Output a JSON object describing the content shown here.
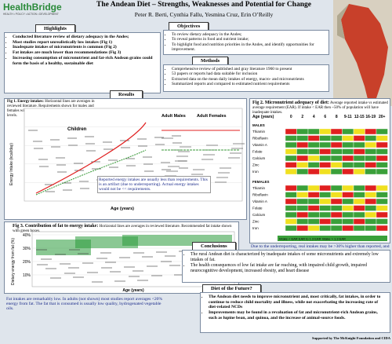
{
  "header": {
    "logo": "HealthBridge",
    "tagline": "HEALTH • POLICY • ACTION • DEVELOPMENT",
    "title": "The Andean Diet – Strengths, Weaknesses and Potential for Change",
    "authors": "Peter R. Berti, Cynthia Fallu, Yesmina Cruz, Erin O’Reilly"
  },
  "highlights": {
    "title": "Highlights",
    "items": [
      "Conducted literature review of dietary adequacy in the Andes;",
      "Most studies report unrealistically low intakes (Fig 1)",
      "Inadequate intakes of micronutrients is common (Fig 2)",
      "Fat intakes are much lower than recommendations (Fig 3)",
      "Increasing consumption of micronutrient and fat-rich Andean grains could form the basis of a healthy, sustainable diet"
    ]
  },
  "objectives": {
    "title": "Objectives",
    "items": [
      "To review dietary adequacy in the Andes;",
      "To reveal patterns in food and nutrient intake;",
      "To highlight food and nutrition priorities in the Andes, and identify opportunities for improvement."
    ]
  },
  "methods": {
    "title": "Methods",
    "items": [
      "Comprehensive review of published and gray literature 1960 to present",
      "53 papers or reports had data suitable for inclusion",
      "Extracted data on the mean daily intakes of energy, macro- and micronutrients",
      "Summarized reports and compared to estimated nutrient requirements"
    ]
  },
  "results": {
    "title": "Results"
  },
  "fig1": {
    "title": "Fig 1. Energy intakes:",
    "caption": "Horizontal lines are averages in reviewed literature. Requirements shown for males and females with high (solid lines), and light (dotted) activity levels.",
    "labels": [
      "Adult Males",
      "Adult Females",
      "Children"
    ],
    "y_label": "Energy Intake (kcal/day)",
    "x_label": "Age (years)",
    "note": "Reported energy intakes are usually less than requirements. This is an artifact (due to underreporting). Actual energy intakes would not be << requirements."
  },
  "fig2": {
    "title": "Fig 2. Micronutrient adequacy of diet:",
    "caption": "Average reported intake vs estimated average requirement (EAR). If intake < EAR then ~50% of population will have inadequate intakes.",
    "age_label": "Age (years)",
    "ages": [
      "0",
      "2",
      "4",
      "6",
      "8",
      "9-11",
      "12-15",
      "16-19",
      "20+"
    ],
    "groups": [
      "MALES",
      "FEMALES"
    ],
    "nutrients": [
      "Thiamin",
      "Riboflavin",
      "Vitamin A",
      "Folate",
      "Calcium",
      "Zinc",
      "Iron"
    ],
    "legend": "Intake < EAR    EAR to 1.3 EAR    Intake > 1.3 EAR",
    "note": "Due to the underreporting, real intakes may be >30% higher than reported, and nutrient inadequacies much less common"
  },
  "fig3": {
    "title": "Fig 3. Contribution of fat to energy intake:",
    "caption": "Horizontal lines are averages in reviewed literature. Recommended fat intake shown with green boxes.",
    "y_label": "Dietary energy from fat (%)",
    "x_label": "Age (years)",
    "yticks": [
      "40%",
      "30%",
      "20%",
      "10%"
    ],
    "note": "Fat intakes are remarkably low. In adults (not shown) most studies report averages <20% energy from fat. The fat that is consumed is usually low quality, hydrogenated vegetable oils."
  },
  "conclusions": {
    "title": "Conclusions",
    "items": [
      "The rural Andean diet is characterized by inadequate intakes of some micronutrients and extremely low intakes of fat.",
      "The health consequences of low fat intake are far reaching, with impaired child growth, impaired neurocognitive development, increased obesity, and heart disease"
    ]
  },
  "future": {
    "title": "Diet of the Future?",
    "items": [
      "The Andean diet needs to improve micronutrient and, most critically, fat intakes, in order to continue to reduce child mortality and illness, while not exacerbating the increasing rate of diet-related NCDs",
      "Improvements may be found in a revaluation of fat and micronutrient-rich Andean grains, such as lupine bean, and quinoa, and the increase of animal-source foods."
    ]
  },
  "footer": "Supported by The McKnight Foundation and CIDA"
}
